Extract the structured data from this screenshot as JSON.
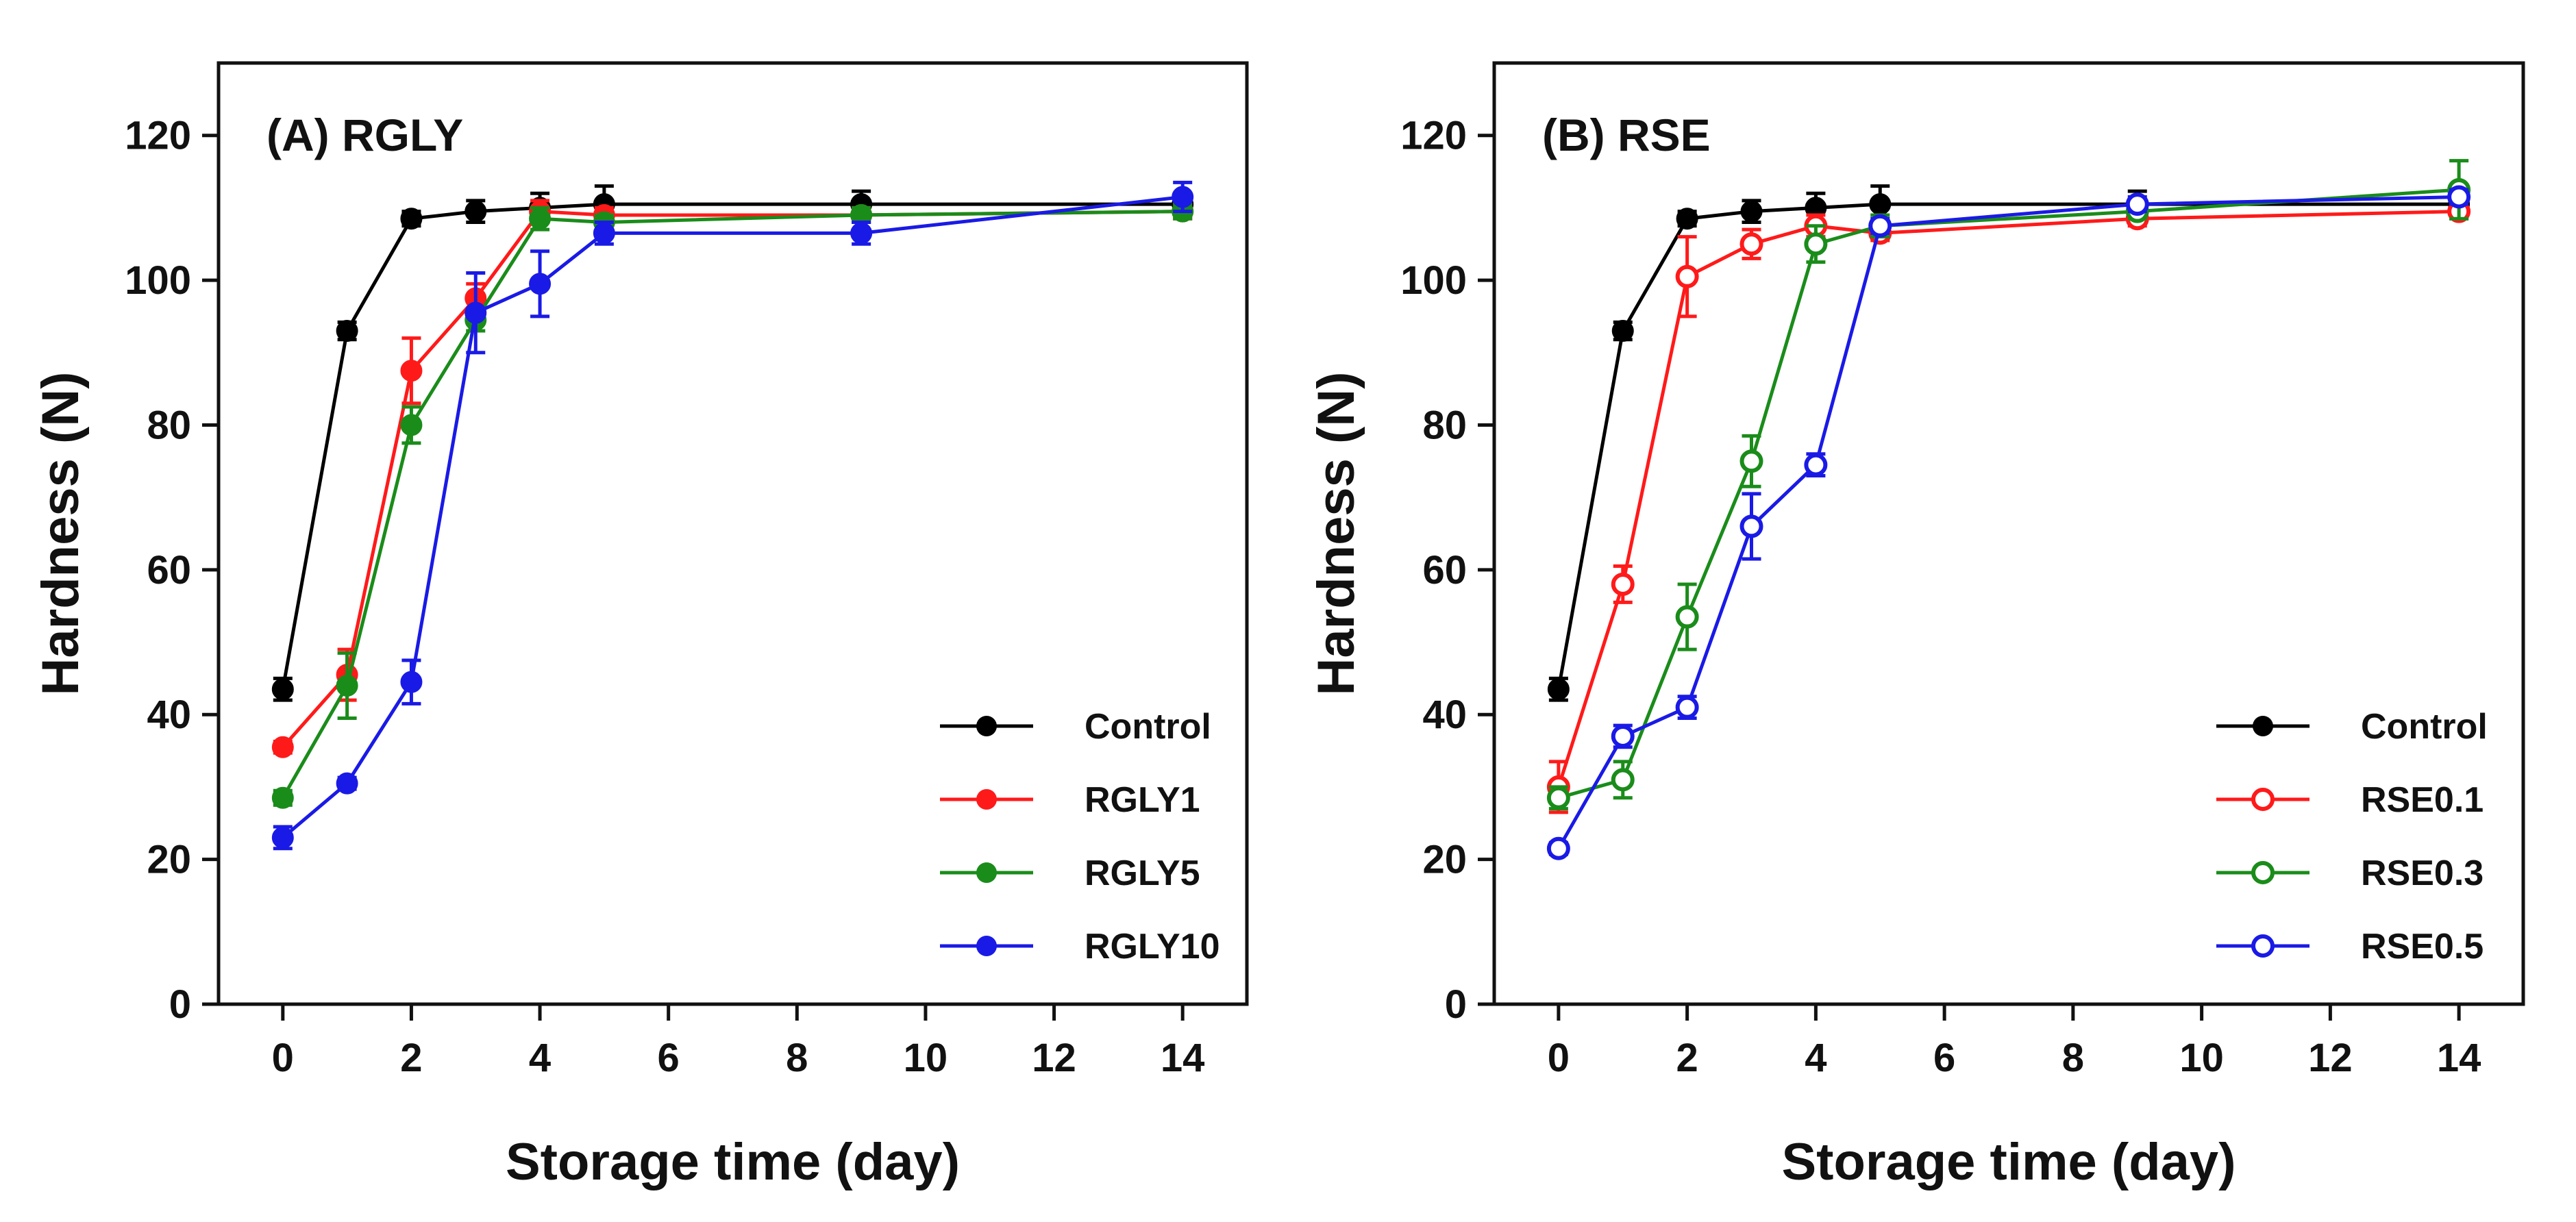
{
  "chart_data": [
    {
      "type": "line",
      "title": "(A) RGLY",
      "xlabel": "Storage time (day)",
      "ylabel": "Hardness (N)",
      "xlim": [
        -1,
        15
      ],
      "ylim": [
        0,
        130
      ],
      "xticks": [
        0,
        2,
        4,
        6,
        8,
        10,
        12,
        14
      ],
      "yticks": [
        0,
        20,
        40,
        60,
        80,
        100,
        120
      ],
      "x": [
        0,
        1,
        2,
        3,
        4,
        5,
        9,
        14
      ],
      "legend_position": "bottom-right",
      "series": [
        {
          "name": "Control",
          "color": "#000000",
          "marker": "filled",
          "values": [
            43.5,
            93,
            108.5,
            109.5,
            110,
            110.5,
            110.5,
            110.5
          ],
          "errors": [
            1.5,
            1.2,
            1.0,
            1.5,
            2.0,
            2.5,
            1.8,
            1.5
          ]
        },
        {
          "name": "RGLY1",
          "color": "#ff1a1a",
          "marker": "filled",
          "values": [
            35.5,
            45.5,
            87.5,
            97.5,
            109.5,
            109,
            109,
            109.5
          ],
          "errors": [
            0.8,
            3.5,
            4.5,
            2.0,
            1.5,
            1.0,
            1.0,
            1.0
          ]
        },
        {
          "name": "RGLY5",
          "color": "#1a8c1a",
          "marker": "filled",
          "values": [
            28.5,
            44,
            80,
            94.5,
            108.5,
            108,
            109,
            109.5
          ],
          "errors": [
            1.0,
            4.5,
            2.5,
            1.5,
            1.5,
            1.0,
            1.0,
            1.0
          ]
        },
        {
          "name": "RGLY10",
          "color": "#1a1ae6",
          "marker": "filled",
          "values": [
            23,
            30.5,
            44.5,
            95.5,
            99.5,
            106.5,
            106.5,
            111.5
          ],
          "errors": [
            1.5,
            0.8,
            3.0,
            5.5,
            4.5,
            1.5,
            1.5,
            2.0
          ]
        }
      ]
    },
    {
      "type": "line",
      "title": "(B) RSE",
      "xlabel": "Storage time (day)",
      "ylabel": "Hardness (N)",
      "xlim": [
        -1,
        15
      ],
      "ylim": [
        0,
        130
      ],
      "xticks": [
        0,
        2,
        4,
        6,
        8,
        10,
        12,
        14
      ],
      "yticks": [
        0,
        20,
        40,
        60,
        80,
        100,
        120
      ],
      "x": [
        0,
        1,
        2,
        3,
        4,
        5,
        9,
        14
      ],
      "legend_position": "bottom-right",
      "series": [
        {
          "name": "Control",
          "color": "#000000",
          "marker": "filled",
          "values": [
            43.5,
            93,
            108.5,
            109.5,
            110,
            110.5,
            110.5,
            110.5
          ],
          "errors": [
            1.5,
            1.2,
            1.0,
            1.5,
            2.0,
            2.5,
            1.8,
            1.5
          ]
        },
        {
          "name": "RSE0.1",
          "color": "#ff1a1a",
          "marker": "open",
          "values": [
            30,
            58,
            100.5,
            105,
            107.5,
            106.5,
            108.5,
            109.5
          ],
          "errors": [
            3.5,
            2.5,
            5.5,
            2.0,
            1.5,
            1.0,
            1.0,
            1.0
          ]
        },
        {
          "name": "RSE0.3",
          "color": "#1a8c1a",
          "marker": "open",
          "values": [
            28.5,
            31,
            53.5,
            75,
            105,
            107.5,
            109.5,
            112.5
          ],
          "errors": [
            1.5,
            2.5,
            4.5,
            3.5,
            2.5,
            1.5,
            1.0,
            4.0
          ]
        },
        {
          "name": "RSE0.5",
          "color": "#1a1ae6",
          "marker": "open",
          "values": [
            21.5,
            37,
            41,
            66,
            74.5,
            107.5,
            110.5,
            111.5
          ],
          "errors": [
            0.8,
            1.5,
            1.5,
            4.5,
            1.5,
            1.0,
            1.0,
            1.0
          ]
        }
      ]
    }
  ]
}
